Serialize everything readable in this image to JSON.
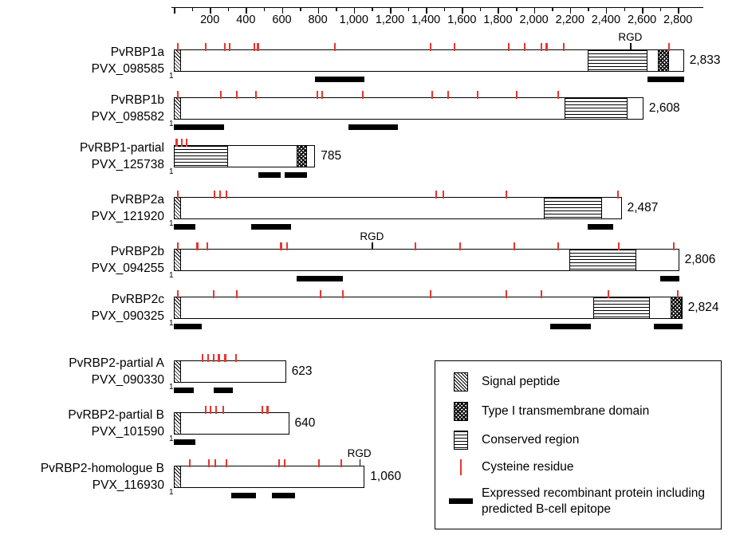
{
  "figure": {
    "ruler": {
      "unit_max": 2800,
      "major_step": 200,
      "minor_step": 100,
      "tick_labels": [
        "200",
        "400",
        "600",
        "800",
        "1,000",
        "1,200",
        "1,400",
        "1,600",
        "1,800",
        "2,000",
        "2,200",
        "2,400",
        "2,600",
        "2,800"
      ]
    },
    "origin_label": "1",
    "rgd_text": "RGD",
    "colors": {
      "cysteine_red": "#e8352e",
      "ink": "#000000"
    },
    "proteins": [
      {
        "name": "PvRBP1a",
        "gene_id": "PVX_098585",
        "length": 2833,
        "length_label": "2,833",
        "signal_peptide": [
          0,
          38
        ],
        "conserved_regions": [
          [
            2300,
            2630
          ]
        ],
        "transmembrane": [
          2690,
          2750
        ],
        "rgd": 2535,
        "cysteines": [
          20,
          175,
          283,
          310,
          445,
          467,
          895,
          1425,
          1560,
          1860,
          1950,
          2040,
          2070,
          2165,
          2750
        ],
        "expressed": [
          [
            785,
            1060
          ],
          [
            2630,
            2833
          ]
        ]
      },
      {
        "name": "PvRBP1b",
        "gene_id": "PVX_098582",
        "length": 2608,
        "length_label": "2,608",
        "signal_peptide": [
          0,
          38
        ],
        "conserved_regions": [
          [
            2170,
            2520
          ]
        ],
        "transmembrane": null,
        "rgd": null,
        "cysteines": [
          20,
          260,
          350,
          455,
          795,
          825,
          1050,
          1435,
          1525,
          1685,
          1905,
          2135
        ],
        "expressed": [
          [
            0,
            280
          ],
          [
            970,
            1245
          ]
        ]
      },
      {
        "name": "PvRBP1-partial",
        "gene_id": "PVX_125738",
        "length": 785,
        "length_label": "785",
        "signal_peptide": null,
        "conserved_regions": [
          [
            0,
            300
          ]
        ],
        "transmembrane": [
          680,
          740
        ],
        "rgd": null,
        "cysteines": [
          15,
          42,
          70
        ],
        "expressed": [
          [
            470,
            595
          ],
          [
            615,
            740
          ]
        ]
      },
      {
        "name": "PvRBP2a",
        "gene_id": "PVX_121920",
        "length": 2487,
        "length_label": "2,487",
        "signal_peptide": [
          0,
          38
        ],
        "conserved_regions": [
          [
            2055,
            2380
          ]
        ],
        "transmembrane": null,
        "rgd": null,
        "cysteines": [
          20,
          225,
          255,
          292,
          1455,
          1495,
          1845,
          2465
        ],
        "expressed": [
          [
            0,
            120
          ],
          [
            430,
            650
          ],
          [
            2300,
            2440
          ]
        ]
      },
      {
        "name": "PvRBP2b",
        "gene_id": "PVX_094255",
        "length": 2806,
        "length_label": "2,806",
        "signal_peptide": [
          0,
          38
        ],
        "conserved_regions": [
          [
            2195,
            2570
          ]
        ],
        "transmembrane": null,
        "rgd": 1100,
        "cysteines": [
          20,
          130,
          185,
          595,
          630,
          1340,
          1590,
          1890,
          2135,
          2470,
          2775
        ],
        "expressed": [
          [
            680,
            940
          ],
          [
            2700,
            2806
          ]
        ]
      },
      {
        "name": "PvRBP2c",
        "gene_id": "PVX_090325",
        "length": 2824,
        "length_label": "2,824",
        "signal_peptide": [
          0,
          38
        ],
        "conserved_regions": [
          [
            2330,
            2645
          ]
        ],
        "transmembrane": [
          2758,
          2822
        ],
        "rgd": null,
        "cysteines": [
          20,
          220,
          350,
          815,
          940,
          1425,
          1845,
          2040,
          2415,
          2800
        ],
        "expressed": [
          [
            0,
            155
          ],
          [
            2090,
            2315
          ],
          [
            2665,
            2824
          ]
        ]
      },
      {
        "name": "PvRBP2-partial A",
        "gene_id": "PVX_090330",
        "length": 623,
        "length_label": "623",
        "signal_peptide": [
          0,
          38
        ],
        "conserved_regions": [],
        "transmembrane": null,
        "rgd": null,
        "cysteines": [
          160,
          190,
          220,
          250,
          285,
          345
        ],
        "expressed": [
          [
            0,
            110
          ],
          [
            220,
            330
          ]
        ]
      },
      {
        "name": "PvRBP2-partial B",
        "gene_id": "PVX_101590",
        "length": 640,
        "length_label": "640",
        "signal_peptide": [
          0,
          38
        ],
        "conserved_regions": [],
        "transmembrane": null,
        "rgd": null,
        "cysteines": [
          175,
          205,
          235,
          275,
          490,
          520
        ],
        "expressed": [
          [
            0,
            120
          ]
        ]
      },
      {
        "name": "PvRBP2-homologue B",
        "gene_id": "PVX_116930",
        "length": 1060,
        "length_label": "1,060",
        "signal_peptide": [
          0,
          38
        ],
        "conserved_regions": [],
        "transmembrane": null,
        "rgd": 1030,
        "cysteines": [
          90,
          195,
          230,
          290,
          585,
          615,
          805,
          930
        ],
        "expressed": [
          [
            320,
            455
          ],
          [
            545,
            675
          ]
        ]
      }
    ],
    "legend": {
      "items": [
        {
          "type": "signal-peptide",
          "label": "Signal peptide"
        },
        {
          "type": "transmembrane",
          "label": "Type I transmembrane domain"
        },
        {
          "type": "conserved-region",
          "label": "Conserved region"
        },
        {
          "type": "cysteine",
          "label": "Cysteine residue"
        },
        {
          "type": "expressed-protein",
          "label": "Expressed recombinant protein including predicted B-cell epitope"
        }
      ]
    }
  }
}
